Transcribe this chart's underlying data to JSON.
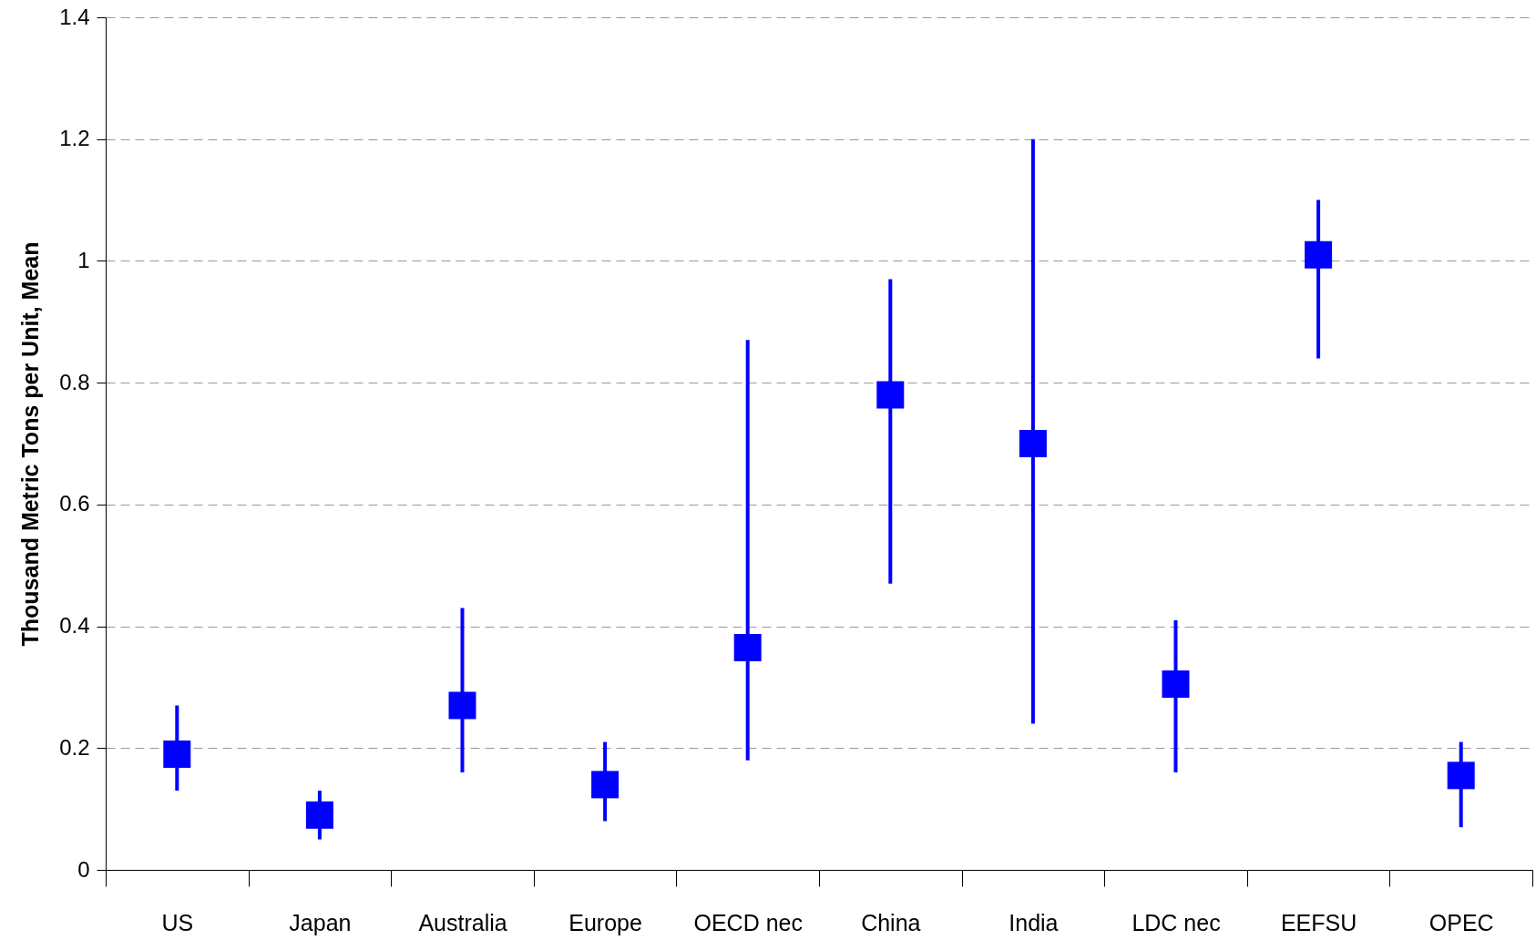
{
  "chart_data": {
    "type": "scatter",
    "ylabel": "Thousand Metric Tons per Unit, Mean",
    "categories": [
      "US",
      "Japan",
      "Australia",
      "Europe",
      "OECD nec",
      "China",
      "India",
      "LDC nec",
      "EEFSU",
      "OPEC"
    ],
    "series": [
      {
        "color": "#0000ff",
        "values": [
          0.19,
          0.09,
          0.27,
          0.14,
          0.365,
          0.78,
          0.7,
          0.305,
          1.01,
          0.155
        ],
        "errors": [
          [
            0.13,
            0.27
          ],
          [
            0.05,
            0.13
          ],
          [
            0.16,
            0.43
          ],
          [
            0.08,
            0.21
          ],
          [
            0.18,
            0.87
          ],
          [
            0.47,
            0.97
          ],
          [
            0.24,
            1.2
          ],
          [
            0.16,
            0.41
          ],
          [
            0.84,
            1.1
          ],
          [
            0.07,
            0.21
          ]
        ]
      }
    ],
    "ylim": [
      0,
      1.4
    ],
    "yticks": [
      0,
      0.2,
      0.4,
      0.6,
      0.8,
      1,
      1.2,
      1.4
    ],
    "grid": "y",
    "marker": "square"
  }
}
